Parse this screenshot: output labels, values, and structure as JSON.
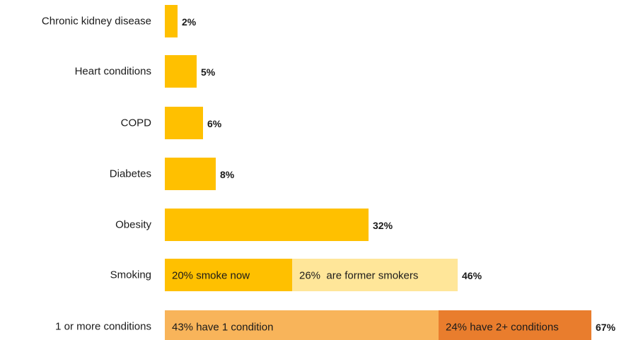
{
  "colors": {
    "bar": "#FFC000",
    "former_smokers": "#FFE699",
    "one_condition": "#F8B45A",
    "two_plus_conditions": "#E97D2D",
    "text": "#1a1a1a"
  },
  "chart_data": {
    "type": "bar",
    "orientation": "horizontal",
    "xlim": [
      0,
      67
    ],
    "grid": false,
    "legend": "none",
    "rows": [
      {
        "category": "Chronic kidney disease",
        "value": 2,
        "value_label": "2%",
        "segments": [
          {
            "value": 2,
            "label": "",
            "color": "#FFC000"
          }
        ]
      },
      {
        "category": "Heart conditions",
        "value": 5,
        "value_label": "5%",
        "segments": [
          {
            "value": 5,
            "label": "",
            "color": "#FFC000"
          }
        ]
      },
      {
        "category": "COPD",
        "value": 6,
        "value_label": "6%",
        "segments": [
          {
            "value": 6,
            "label": "",
            "color": "#FFC000"
          }
        ]
      },
      {
        "category": "Diabetes",
        "value": 8,
        "value_label": "8%",
        "segments": [
          {
            "value": 8,
            "label": "",
            "color": "#FFC000"
          }
        ]
      },
      {
        "category": "Obesity",
        "value": 32,
        "value_label": "32%",
        "segments": [
          {
            "value": 32,
            "label": "",
            "color": "#FFC000"
          }
        ]
      },
      {
        "category": "Smoking",
        "value": 46,
        "value_label": "46%",
        "segments": [
          {
            "value": 20,
            "label": "20% smoke now",
            "color": "#FFC000"
          },
          {
            "value": 26,
            "label": "26%  are former smokers",
            "color": "#FFE699"
          }
        ]
      },
      {
        "category": "1 or more conditions",
        "value": 67,
        "value_label": "67%",
        "segments": [
          {
            "value": 43,
            "label": "43% have 1 condition",
            "color": "#F8B45A"
          },
          {
            "value": 24,
            "label": "24% have 2+ conditions",
            "color": "#E97D2D"
          }
        ]
      }
    ]
  }
}
